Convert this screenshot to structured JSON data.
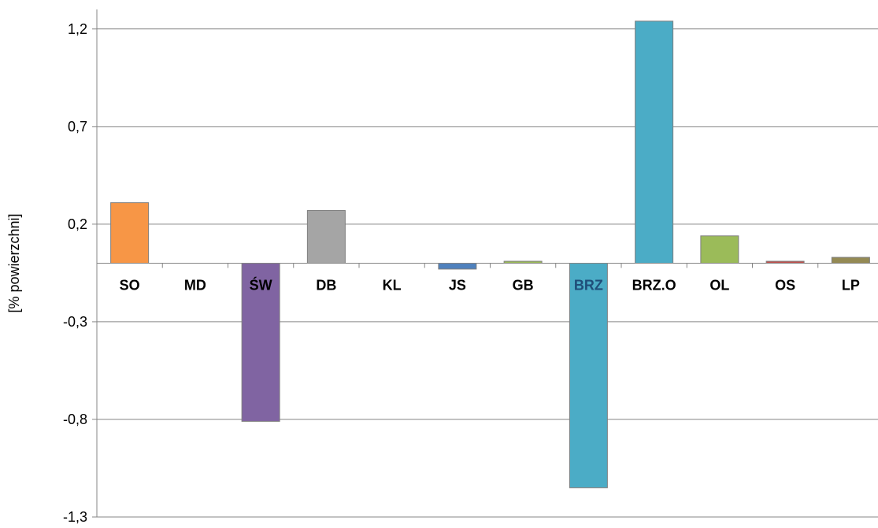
{
  "chart_data": {
    "type": "bar",
    "ylabel": "[% powierzchni]",
    "ylim": [
      -1.3,
      1.3
    ],
    "yticks": [
      1.2,
      0.7,
      0.2,
      -0.3,
      -0.8,
      -1.3
    ],
    "ytick_labels": [
      "1,2",
      "0,7",
      "0,2",
      "-0,3",
      "-0,8",
      "-1,3"
    ],
    "grid": true,
    "legend": "none",
    "categories": [
      "SO",
      "MD",
      "ŚW",
      "DB",
      "KL",
      "JS",
      "GB",
      "BRZ",
      "BRZ.O",
      "OL",
      "OS",
      "LP"
    ],
    "values": [
      0.31,
      0.0,
      -0.81,
      0.27,
      0.0,
      -0.03,
      0.01,
      -1.15,
      1.24,
      0.14,
      0.01,
      0.03
    ],
    "colors": [
      "#F79646",
      "#4F81BD",
      "#8064A2",
      "#A5A5A5",
      "#4F81BD",
      "#4F81BD",
      "#9BBB59",
      "#4BACC6",
      "#4BACC6",
      "#9BBB59",
      "#C0504D",
      "#948A54"
    ],
    "highlighted_label": "BRZ",
    "highlight_color": "#1F4E79"
  }
}
